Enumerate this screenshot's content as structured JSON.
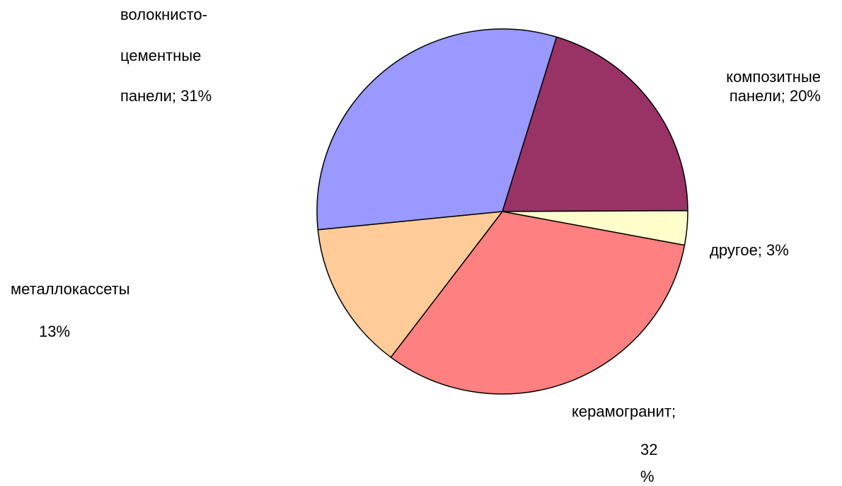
{
  "chart_data": {
    "type": "pie",
    "values": [
      20,
      3,
      32,
      13,
      31
    ],
    "value_labels": [
      [
        "композитные",
        "панели; 20%"
      ],
      [
        "другое; 3%"
      ],
      [
        "керамогранит;",
        "32",
        "%"
      ],
      [
        "металлокассеты",
        "13%"
      ],
      [
        "волокнисто-",
        "цементные",
        "панели; 31%"
      ]
    ],
    "colors": [
      "#993366",
      "#ffffcc",
      "#ff8080",
      "#ffcc99",
      "#9999ff"
    ]
  }
}
